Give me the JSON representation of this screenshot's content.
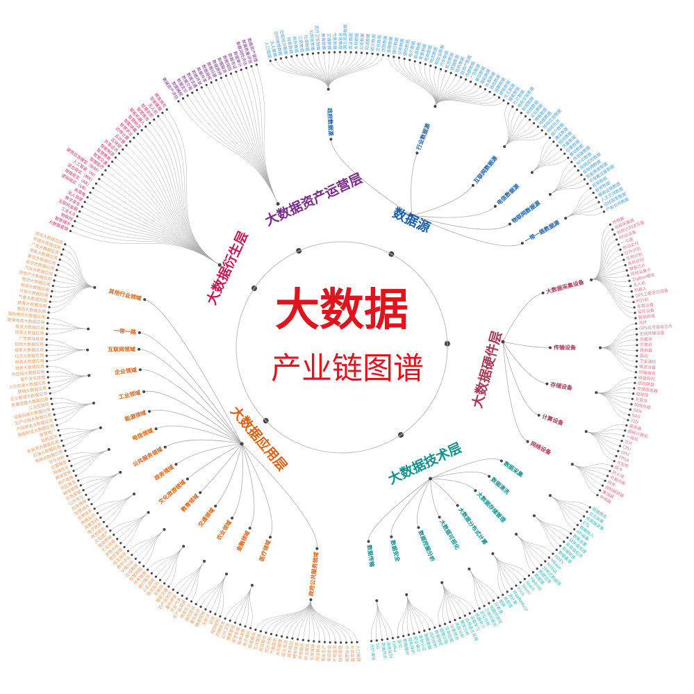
{
  "title": {
    "main": "大数据",
    "sub": "产业链图谱",
    "color": "#e0141e"
  },
  "layers": [
    {
      "name": "数据源",
      "color": "#1a5fa8",
      "leaf_color": "#4aa3dd",
      "children": [
        {
          "name": "政府数据源",
          "leaves": [
            "人口数据",
            "法人数据",
            "空间地理数据",
            "宏观经济数据",
            "财政数据",
            "税务数据",
            "工商数据",
            "社保数据",
            "公积金数据",
            "医疗卫生数据",
            "教育数据",
            "交通数据",
            "气象数据",
            "环境数据",
            "国土资源数据",
            "农业数据",
            "水利数据",
            "公安数据",
            "司法数据",
            "统计数据",
            "文化数据",
            "旅游数据"
          ]
        },
        {
          "name": "行业数据源",
          "leaves": [
            "金融数据",
            "银行数据",
            "证券数据",
            "保险数据",
            "电力数据",
            "能源数据",
            "零售数据",
            "电商数据",
            "物流数据",
            "制造业数据",
            "汽车数据",
            "航空数据",
            "铁路数据",
            "医药数据",
            "房地产数据",
            "传媒数据",
            "广告数据",
            "餐饮数据",
            "酒店数据",
            "体育数据",
            "游戏数据",
            "招聘数据",
            "建筑数据",
            "化工数据"
          ]
        },
        {
          "name": "互联网数据源",
          "leaves": [
            "搜索数据",
            "社交数据",
            "电商交易数据",
            "新闻数据",
            "视频数据",
            "论坛数据",
            "博客数据",
            "地图数据",
            "移动应用数据",
            "网络日志"
          ]
        },
        {
          "name": "电信数据源",
          "leaves": [
            "用户数据",
            "通话数据",
            "短信数据",
            "流量数据",
            "位置数据",
            "基站数据"
          ]
        },
        {
          "name": "物联网数据源",
          "leaves": [
            "传感器数据",
            "RFID数据",
            "视频监控数据",
            "车联网数据",
            "智能家居数据",
            "可穿戴设备数据"
          ]
        },
        {
          "name": "一带一路数据源",
          "leaves": [
            "贸易数据",
            "投资数据",
            "基础设施数据",
            "人文交流数据",
            "沿线国家数据",
            "产能合作数据"
          ]
        }
      ]
    },
    {
      "name": "大数据硬件层",
      "color": "#a83a55",
      "leaf_color": "#e07a8a",
      "children": [
        {
          "name": "大数据采集设备",
          "leaves": [
            "传感器",
            "视频采集器",
            "射频识别读写器",
            "RFID设备",
            "一卡通",
            "移动支付",
            "红外识别",
            "生物识别",
            "条码识别",
            "智能芯片",
            "视频采集卡",
            "ZigBee模块",
            "无人机",
            "机器人",
            "GPS卫星定位设备",
            "POS机",
            "车载设备",
            "监控设备",
            "智能终端"
          ]
        },
        {
          "name": "传输设备",
          "leaves": [
            "光纤",
            "GPS信号接收芯片",
            "无线传输设备",
            "光模块",
            "交换机",
            "路由器",
            "基站",
            "卫星通信",
            "微波设备",
            "同轴电缆"
          ]
        },
        {
          "name": "存储设备",
          "leaves": [
            "磁盘阵列",
            "固态硬盘",
            "存储服务器",
            "磁带库",
            "光盘库",
            "网络存储",
            "SAN",
            "NAS",
            "闪存"
          ]
        },
        {
          "name": "计算设备",
          "leaves": [
            "服务器",
            "超级计算机",
            "一体机",
            "芯片",
            "CPU",
            "GPU",
            "FPGA",
            "大型机"
          ]
        },
        {
          "name": "网络设备",
          "leaves": [
            "网卡",
            "防火墙",
            "负载均衡",
            "网关",
            "调制解调器",
            "集线器",
            "中继器"
          ]
        }
      ]
    },
    {
      "name": "大数据技术层",
      "color": "#12908e",
      "leaf_color": "#3bbcbc",
      "children": [
        {
          "name": "数据采集",
          "leaves": [
            "网络爬虫",
            "日志采集",
            "传感器采集",
            "ETL",
            "数据接入",
            "API采集"
          ]
        },
        {
          "name": "数据清洗",
          "leaves": [
            "数据去重",
            "缺失值处理",
            "异常值检测",
            "数据转换",
            "数据集成"
          ]
        },
        {
          "name": "大数据存储管理",
          "leaves": [
            "HDFS",
            "HBase",
            "NoSQL",
            "分布式数据库",
            "数据仓库",
            "数据湖"
          ]
        },
        {
          "name": "大数据分布式计算",
          "leaves": [
            "Hadoop",
            "Spark",
            "Storm",
            "Flink",
            "MapReduce",
            "流计算",
            "批处理"
          ]
        },
        {
          "name": "大数据可视化",
          "leaves": [
            "图表",
            "仪表盘",
            "地图可视化",
            "三维可视化",
            "交互分析"
          ]
        },
        {
          "name": "数据挖掘分析",
          "leaves": [
            "机器学习",
            "深度学习",
            "自然语言处理",
            "聚类分析",
            "关联分析",
            "分类预测",
            "文本挖掘",
            "图像识别"
          ]
        },
        {
          "name": "数据安全",
          "leaves": [
            "数据加密",
            "访问控制",
            "数据脱敏",
            "身份认证",
            "安全审计",
            "隐私保护",
            "数据备份",
            "容灾"
          ]
        },
        {
          "name": "数据传输",
          "leaves": [
            "Kafka",
            "消息队列",
            "数据同步",
            "5G",
            "光纤通信"
          ]
        }
      ]
    },
    {
      "name": "大数据应用层",
      "color": "#e06010",
      "leaf_color": "#f09a60",
      "children": [
        {
          "name": "政府公共服务领域",
          "leaves": [
            "人口管理",
            "社会治理",
            "市场监管",
            "税务管理",
            "环境监测",
            "食品安全",
            "安全生产",
            "司法服务",
            "住房保障",
            "就业服务",
            "养老服务",
            "精准扶贫",
            "城市规划",
            "国土资源",
            "水利管理",
            "气象服务",
            "统计分析",
            "民政服务",
            "文化服务",
            "体育服务"
          ]
        },
        {
          "name": "医疗领域",
          "leaves": [
            "电子病历",
            "临床决策",
            "医学影像",
            "健康管理",
            "公共卫生",
            "药物研发"
          ]
        },
        {
          "name": "金融领域",
          "leaves": [
            "风险控制",
            "征信",
            "反欺诈",
            "精准营销",
            "量化投资",
            "保险定价"
          ]
        },
        {
          "name": "农业领域",
          "leaves": [
            "精准农业",
            "农产品溯源",
            "农业气象",
            "畜牧养殖",
            "农产品市场"
          ]
        },
        {
          "name": "交通领域",
          "leaves": [
            "智能交通",
            "车联网",
            "路况监测",
            "公交调度",
            "出行服务",
            "停车管理"
          ]
        },
        {
          "name": "教育领域",
          "leaves": [
            "智慧校园",
            "在线教育",
            "学情分析",
            "教学评估",
            "招生就业"
          ]
        },
        {
          "name": "文化旅游领域",
          "leaves": [
            "景区管理",
            "游客分析",
            "文化消费",
            "旅游营销",
            "文化遗产"
          ]
        },
        {
          "name": "政务领域",
          "leaves": [
            "政务服务",
            "电子政务",
            "决策支持",
            "舆情监测",
            "信用体系"
          ]
        },
        {
          "name": "公共服务领域",
          "leaves": [
            "智慧城市",
            "社会保障",
            "公共安全",
            "应急管理",
            "城市管理",
            "社区服务"
          ]
        },
        {
          "name": "电信领域",
          "leaves": [
            "用户画像",
            "精准营销",
            "网络优化",
            "位置服务",
            "信令分析"
          ]
        },
        {
          "name": "能源领域",
          "leaves": [
            "电网大数据应用",
            "石油大数据应用",
            "新能源大数据应用",
            "能耗监测",
            "智慧电厂"
          ]
        },
        {
          "name": "工业领域",
          "leaves": [
            "智能制造大数据应用",
            "产品研发大数据应用",
            "生产过程大数据应用",
            "设备运维大数据应用",
            "工业互联网",
            "质量管理大数据应用"
          ]
        },
        {
          "name": "企业领域",
          "leaves": [
            "企业管理大数据应用",
            "营销大数据应用",
            "人力资源大数据应用",
            "客户关系管理",
            "供应链大数据应用",
            "财务大数据应用"
          ]
        },
        {
          "name": "互联网领域",
          "leaves": [
            "电商大数据应用",
            "社交大数据应用",
            "搜索大数据应用",
            "视频大数据应用",
            "广告精准投放"
          ]
        },
        {
          "name": "一带一路",
          "leaves": [
            "贸易大数据应用",
            "投资大数据应用",
            "跨境电商大数据应用",
            "国际物流大数据应用"
          ]
        },
        {
          "name": "其他行业领域",
          "leaves": [
            "食品大数据应用",
            "体育大数据应用",
            "气象大数据应用",
            "环保大数据应用",
            "旅游大数据应用",
            "物流大数据应用",
            "房地产大数据应用",
            "汽车大数据应用",
            "航空大数据应用",
            "餐饮大数据应用",
            "零售大数据应用",
            "广告大数据应用",
            "传媒大数据应用",
            "游戏大数据应用"
          ]
        }
      ]
    },
    {
      "name": "大数据衍生层",
      "color": "#c8174f",
      "leaf_color": "#d8306a",
      "leaves": [
        "大数据营销",
        "智慧城市",
        "物联网",
        "工业4.0",
        "互联网金融",
        "数字孪生",
        "无人驾驶",
        "新零售",
        "虚拟现实（VR）",
        "增强现实（AR）",
        "混合现实（MR）",
        "人工智能（AI）",
        "建筑信息模型（BIM）",
        "智慧医疗",
        "智慧交通",
        "智慧教育",
        "智能制造",
        "共享经济",
        "区块链",
        "云计算",
        "边缘计算",
        "智慧农业",
        "智能穿戴",
        "智慧物流",
        "智能机器人",
        "智慧政务",
        "智慧安防",
        "无人机",
        "智能客服",
        "精准扶贫"
      ]
    },
    {
      "name": "大数据资产运营层",
      "color": "#7a2a8a",
      "leaf_color": "#7a2a8a",
      "leaves": [
        "数据资产评估",
        "数据确权",
        "数据定价",
        "数据交易",
        "数据流通",
        "数据开放",
        "数据共享",
        "数据授权",
        "数据托管",
        "数据质押",
        "数据融资",
        "数据保险",
        "数据存证",
        "数据审计",
        "数据风险评估",
        "数据质量评估",
        "数据资产管理"
      ]
    }
  ]
}
